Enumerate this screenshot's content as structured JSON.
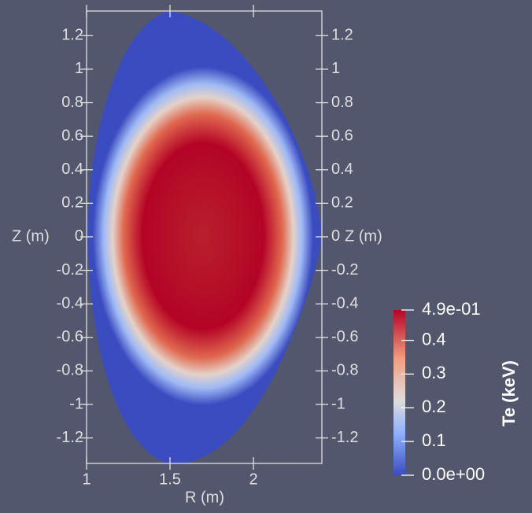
{
  "chart_data": {
    "type": "field",
    "xlabel": "R (m)",
    "ylabel": "Z (m)",
    "xlim": [
      1.0,
      2.41
    ],
    "xticks": [
      1,
      1.5,
      2
    ],
    "ylim": [
      -1.352,
      1.347
    ],
    "yticks": [
      -1.2,
      -1,
      -0.8,
      -0.6,
      -0.4,
      -0.2,
      0,
      0.2,
      0.4,
      0.6,
      0.8,
      1,
      1.2
    ],
    "colorbar": {
      "label": "Te (keV)",
      "lim": [
        0,
        0.49
      ],
      "ticks": [
        {
          "value": 0,
          "label": "0.0e+00"
        },
        0.1,
        0.2,
        0.3,
        0.4,
        {
          "value": 0.49,
          "label": "4.9e-01"
        }
      ]
    }
  }
}
